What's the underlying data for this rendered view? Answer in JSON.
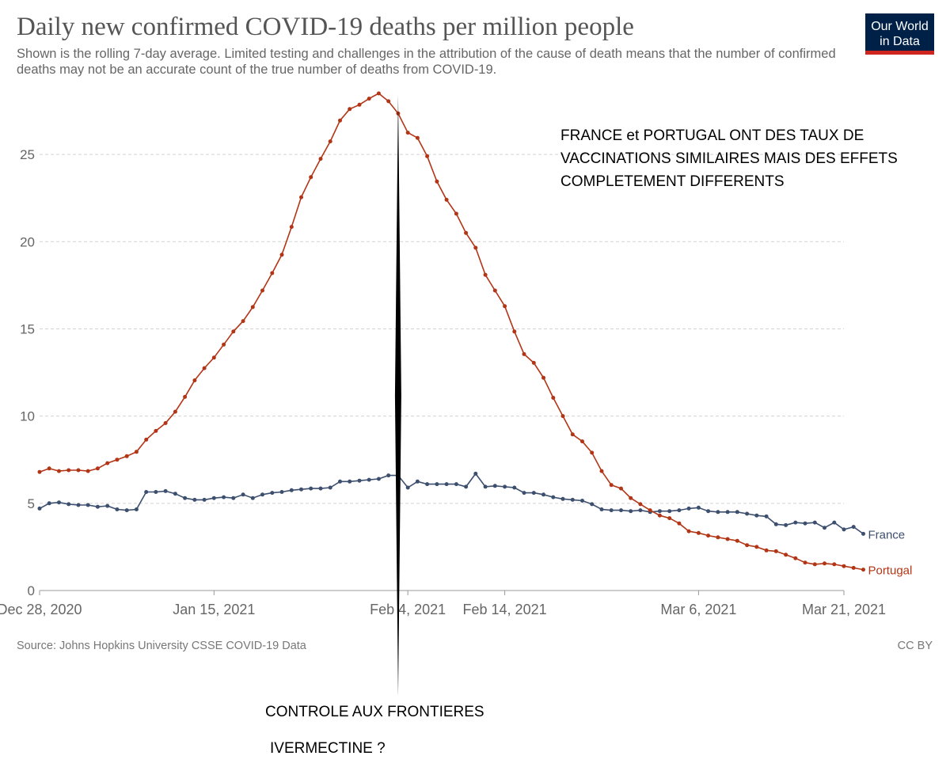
{
  "header": {
    "title": "Daily new confirmed COVID-19 deaths per million people",
    "subtitle": "Shown is the rolling 7-day average. Limited testing and challenges in the attribution of the cause of death means that the number of confirmed deaths may not be an accurate count of the true number of deaths from COVID-19.",
    "logo_line1": "Our World",
    "logo_line2": "in Data"
  },
  "footer": {
    "source": "Source: Johns Hopkins University CSSE COVID-19 Data",
    "license": "CC BY"
  },
  "annotations": {
    "headline_line1": "FRANCE et PORTUGAL ONT DES TAUX DE",
    "headline_line2": "VACCINATIONS SIMILAIRES MAIS DES EFFETS",
    "headline_line3": "COMPLETEMENT DIFFERENTS",
    "border_label": "CONTROLE AUX FRONTIERES",
    "ivermectin_label": "IVERMECTINE ?"
  },
  "colors": {
    "france": "#3d4f6e",
    "portugal": "#b23516",
    "grid": "#d2d2d2",
    "axis_text": "#666666",
    "marker": "#000000"
  },
  "chart_data": {
    "type": "line",
    "title": "Daily new confirmed COVID-19 deaths per million people",
    "xlabel": "",
    "ylabel": "",
    "x_start": "2020-12-28",
    "x_end": "2021-03-21",
    "ylim": [
      0,
      28.5
    ],
    "yticks": [
      0,
      5,
      10,
      15,
      20,
      25
    ],
    "xticks": [
      {
        "date": "2020-12-28",
        "label": "Dec 28, 2020"
      },
      {
        "date": "2021-01-15",
        "label": "Jan 15, 2021"
      },
      {
        "date": "2021-02-04",
        "label": "Feb 4, 2021"
      },
      {
        "date": "2021-02-14",
        "label": "Feb 14, 2021"
      },
      {
        "date": "2021-03-06",
        "label": "Mar 6, 2021"
      },
      {
        "date": "2021-03-21",
        "label": "Mar 21, 2021"
      }
    ],
    "grid": true,
    "vertical_marker_date": "2021-02-03",
    "series": [
      {
        "name": "France",
        "color": "#3d4f6e",
        "values": [
          4.7,
          5.0,
          5.05,
          4.95,
          4.9,
          4.9,
          4.8,
          4.85,
          4.65,
          4.6,
          4.65,
          5.65,
          5.65,
          5.7,
          5.55,
          5.3,
          5.2,
          5.2,
          5.3,
          5.35,
          5.3,
          5.5,
          5.3,
          5.5,
          5.6,
          5.65,
          5.75,
          5.8,
          5.85,
          5.85,
          5.9,
          6.25,
          6.25,
          6.3,
          6.35,
          6.4,
          6.6,
          6.6,
          5.9,
          6.25,
          6.1,
          6.1,
          6.1,
          6.1,
          5.95,
          6.7,
          5.95,
          6.0,
          5.95,
          5.9,
          5.6,
          5.6,
          5.5,
          5.35,
          5.25,
          5.2,
          5.15,
          4.95,
          4.65,
          4.6,
          4.6,
          4.55,
          4.6,
          4.5,
          4.55,
          4.55,
          4.6,
          4.7,
          4.75,
          4.55,
          4.5,
          4.5,
          4.5,
          4.4,
          4.3,
          4.25,
          3.8,
          3.75,
          3.9,
          3.85,
          3.9,
          3.6,
          3.9,
          3.5,
          3.65,
          3.25
        ]
      },
      {
        "name": "Portugal",
        "color": "#b23516",
        "values": [
          6.8,
          7.0,
          6.85,
          6.9,
          6.9,
          6.85,
          7.0,
          7.3,
          7.5,
          7.7,
          7.95,
          8.65,
          9.15,
          9.6,
          10.25,
          11.1,
          12.05,
          12.75,
          13.35,
          14.1,
          14.85,
          15.45,
          16.25,
          17.2,
          18.2,
          19.25,
          20.85,
          22.55,
          23.7,
          24.75,
          25.75,
          26.95,
          27.6,
          27.85,
          28.2,
          28.5,
          28.05,
          27.35,
          26.25,
          25.95,
          24.9,
          23.45,
          22.4,
          21.6,
          20.5,
          19.65,
          18.1,
          17.2,
          16.3,
          14.85,
          13.55,
          13.05,
          12.2,
          11.05,
          10.0,
          8.95,
          8.55,
          7.9,
          6.85,
          6.05,
          5.85,
          5.3,
          4.95,
          4.6,
          4.3,
          4.15,
          3.85,
          3.4,
          3.3,
          3.15,
          3.05,
          2.95,
          2.85,
          2.6,
          2.5,
          2.3,
          2.25,
          2.05,
          1.85,
          1.6,
          1.5,
          1.55,
          1.5,
          1.4,
          1.3,
          1.2
        ]
      }
    ]
  }
}
